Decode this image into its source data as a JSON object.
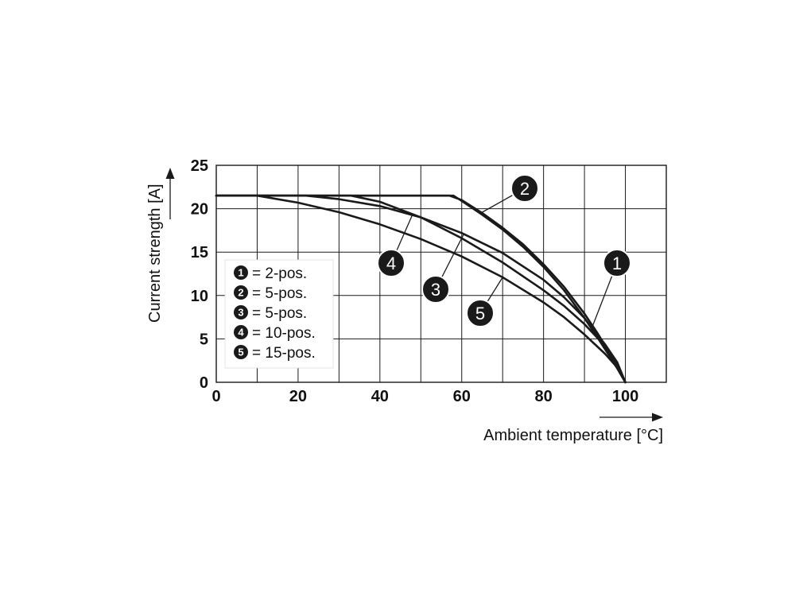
{
  "chart_data": {
    "type": "line",
    "title": "",
    "xlabel": "Ambient temperature [°C]",
    "ylabel": "Current strength [A]",
    "xlim": [
      0,
      110
    ],
    "ylim": [
      0,
      25
    ],
    "x_ticks": [
      "0",
      "20",
      "40",
      "60",
      "80",
      "100"
    ],
    "x_tick_values": [
      0,
      20,
      40,
      60,
      80,
      100
    ],
    "y_ticks": [
      "0",
      "5",
      "10",
      "15",
      "20",
      "25"
    ],
    "y_tick_values": [
      0,
      5,
      10,
      15,
      20,
      25
    ],
    "grid": true,
    "legend_position": "lower-left",
    "series": [
      {
        "id": "1",
        "name": "2-pos.",
        "x": [
          0,
          57,
          60,
          65,
          70,
          75,
          80,
          85,
          90,
          93,
          96,
          98,
          99,
          100
        ],
        "y": [
          21.5,
          21.5,
          21.0,
          19.5,
          17.8,
          15.9,
          13.6,
          11.0,
          7.9,
          5.8,
          3.5,
          1.9,
          1.0,
          0
        ]
      },
      {
        "id": "2",
        "name": "5-pos.",
        "x": [
          0,
          58,
          60,
          65,
          70,
          75,
          80,
          85,
          90,
          93,
          96,
          98,
          99,
          100
        ],
        "y": [
          21.5,
          21.5,
          20.9,
          19.3,
          17.6,
          15.6,
          13.3,
          10.6,
          7.4,
          5.3,
          3.1,
          1.6,
          0.8,
          0
        ]
      },
      {
        "id": "3",
        "name": "5-pos.",
        "x": [
          0,
          22,
          30,
          40,
          50,
          60,
          70,
          80,
          85,
          90,
          95,
          98,
          100
        ],
        "y": [
          21.5,
          21.5,
          21.1,
          20.3,
          19.0,
          17.2,
          14.9,
          11.8,
          9.8,
          7.4,
          4.4,
          2.3,
          0
        ]
      },
      {
        "id": "4",
        "name": "10-pos.",
        "x": [
          0,
          33,
          40,
          50,
          60,
          70,
          80,
          85,
          90,
          95,
          98,
          100
        ],
        "y": [
          21.5,
          21.5,
          20.8,
          19.0,
          16.6,
          13.8,
          10.6,
          8.8,
          6.7,
          4.2,
          2.2,
          0
        ]
      },
      {
        "id": "5",
        "name": "15-pos.",
        "x": [
          0,
          10,
          20,
          30,
          40,
          50,
          60,
          70,
          80,
          85,
          90,
          95,
          98,
          100
        ],
        "y": [
          21.5,
          21.5,
          20.7,
          19.6,
          18.2,
          16.5,
          14.5,
          12.1,
          9.2,
          7.5,
          5.5,
          3.3,
          1.7,
          0
        ]
      }
    ]
  }
}
